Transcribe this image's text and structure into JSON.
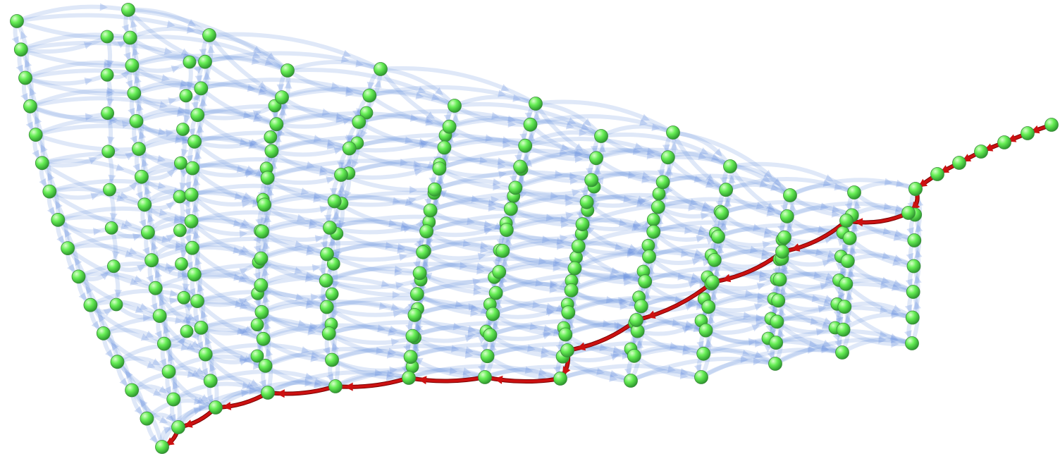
{
  "diagram": {
    "type": "directed-graph-3d",
    "node_color": "#66ee55",
    "node_highlight": "#d9ffcc",
    "node_shade": "#2f9a2f",
    "edge_color": "#6f94e0",
    "edge_opacity": 0.22,
    "path_color": "#cc1111",
    "path_shade": "#7a0000"
  }
}
